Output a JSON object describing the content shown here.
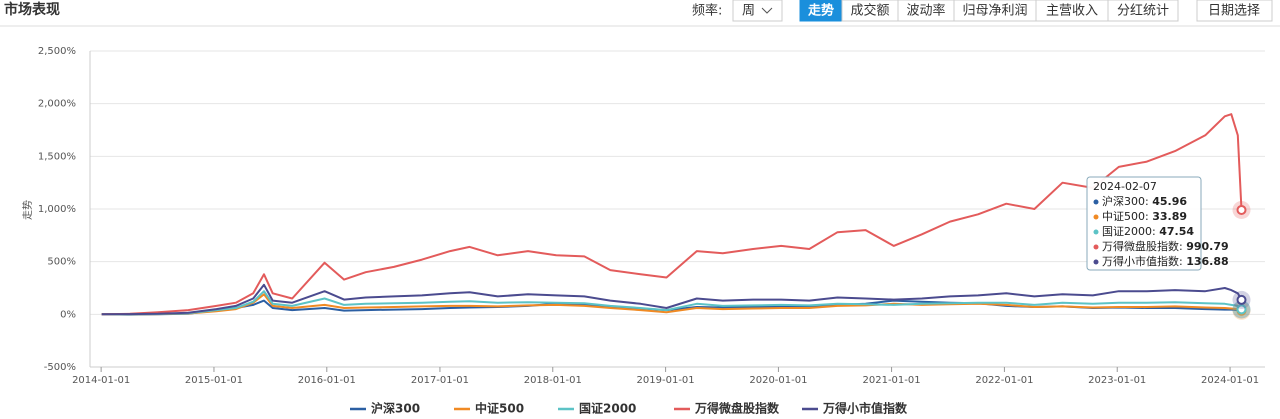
{
  "header": {
    "title": "市场表现",
    "freq_label": "频率:",
    "freq_value": "周",
    "tabs": [
      "走势",
      "成交额",
      "波动率",
      "归母净利润",
      "主营收入",
      "分红统计"
    ],
    "date_button": "日期选择"
  },
  "chart_data": {
    "type": "line",
    "y_label": "走势",
    "x": [
      "2014-01-03",
      "2014-04-04",
      "2014-07-04",
      "2014-10-10",
      "2015-01-09",
      "2015-03-13",
      "2015-05-08",
      "2015-06-12",
      "2015-07-10",
      "2015-09-11",
      "2015-12-25",
      "2016-02-26",
      "2016-05-06",
      "2016-08-05",
      "2016-11-04",
      "2017-02-03",
      "2017-04-07",
      "2017-07-07",
      "2017-10-13",
      "2018-01-12",
      "2018-04-13",
      "2018-07-06",
      "2018-10-12",
      "2019-01-04",
      "2019-04-12",
      "2019-07-05",
      "2019-10-11",
      "2020-01-10",
      "2020-04-10",
      "2020-07-10",
      "2020-10-09",
      "2021-01-08",
      "2021-04-09",
      "2021-07-09",
      "2021-10-08",
      "2022-01-07",
      "2022-04-08",
      "2022-07-08",
      "2022-10-14",
      "2023-01-06",
      "2023-04-07",
      "2023-07-07",
      "2023-10-13",
      "2023-12-15",
      "2024-01-05",
      "2024-01-26",
      "2024-02-07"
    ],
    "series": [
      {
        "name": "沪深300",
        "color": "#2b5fa3",
        "values": [
          0,
          -3,
          0,
          5,
          40,
          60,
          90,
          130,
          60,
          40,
          60,
          35,
          40,
          45,
          50,
          60,
          65,
          70,
          80,
          100,
          90,
          70,
          55,
          40,
          70,
          65,
          70,
          75,
          70,
          90,
          100,
          130,
          120,
          110,
          105,
          80,
          70,
          75,
          60,
          65,
          60,
          60,
          50,
          45,
          45,
          40,
          45.96
        ]
      },
      {
        "name": "中证500",
        "color": "#f08a24",
        "values": [
          0,
          0,
          2,
          8,
          30,
          50,
          110,
          190,
          80,
          60,
          90,
          60,
          65,
          70,
          75,
          80,
          80,
          75,
          85,
          90,
          80,
          60,
          40,
          20,
          60,
          50,
          55,
          60,
          60,
          80,
          85,
          100,
          90,
          95,
          100,
          90,
          70,
          75,
          65,
          70,
          70,
          75,
          65,
          60,
          55,
          50,
          33.89
        ]
      },
      {
        "name": "国证2000",
        "color": "#5cc3c6",
        "values": [
          0,
          1,
          3,
          10,
          40,
          60,
          120,
          220,
          100,
          80,
          150,
          90,
          100,
          105,
          110,
          120,
          125,
          110,
          115,
          110,
          105,
          80,
          60,
          40,
          100,
          80,
          85,
          90,
          85,
          100,
          95,
          90,
          100,
          105,
          110,
          110,
          90,
          110,
          100,
          110,
          110,
          115,
          105,
          100,
          90,
          80,
          47.54
        ]
      },
      {
        "name": "万得微盘股指数",
        "color": "#e35b5b",
        "values": [
          0,
          5,
          20,
          40,
          80,
          110,
          200,
          380,
          200,
          150,
          490,
          330,
          400,
          450,
          520,
          600,
          640,
          560,
          600,
          560,
          550,
          420,
          380,
          350,
          600,
          580,
          620,
          650,
          620,
          780,
          800,
          650,
          760,
          880,
          950,
          1050,
          1000,
          1250,
          1200,
          1400,
          1450,
          1550,
          1700,
          1880,
          1900,
          1700,
          990.79
        ]
      },
      {
        "name": "万得小市值指数",
        "color": "#4b4b8f",
        "values": [
          0,
          2,
          5,
          15,
          50,
          80,
          150,
          280,
          130,
          110,
          220,
          140,
          160,
          170,
          180,
          200,
          210,
          170,
          190,
          180,
          170,
          130,
          100,
          60,
          150,
          130,
          140,
          140,
          130,
          160,
          150,
          140,
          150,
          170,
          180,
          200,
          170,
          190,
          180,
          220,
          220,
          230,
          220,
          250,
          230,
          200,
          136.88
        ]
      }
    ],
    "xlim": [
      "2013-11-26",
      "2024-04-23"
    ],
    "xticks": [
      "2014-01-01",
      "2015-01-01",
      "2016-01-01",
      "2017-01-01",
      "2018-01-01",
      "2019-01-01",
      "2020-01-01",
      "2021-01-01",
      "2022-01-01",
      "2023-01-01",
      "2024-01-01"
    ],
    "ylim": [
      -500,
      2500
    ],
    "yticks": [
      {
        "value": -500,
        "label": "-500%"
      },
      {
        "value": 0,
        "label": "0%"
      },
      {
        "value": 500,
        "label": "500%"
      },
      {
        "value": 1000,
        "label": "1,000%"
      },
      {
        "value": 1500,
        "label": "1,500%"
      },
      {
        "value": 2000,
        "label": "2,000%"
      },
      {
        "value": 2500,
        "label": "2,500%"
      }
    ],
    "grid": true
  }
}
